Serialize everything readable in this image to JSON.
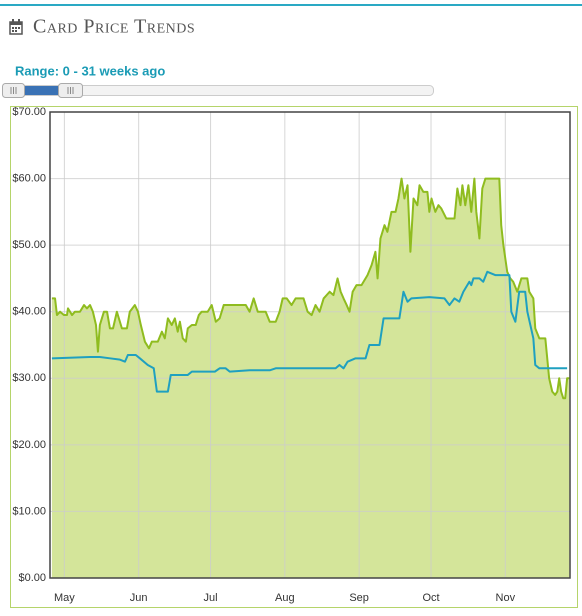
{
  "header": {
    "title": "Card Price Trends",
    "range_label": "Range: 0 - 31 weeks ago"
  },
  "chart_data": {
    "type": "line",
    "xlim": [
      0,
      217
    ],
    "xticks": [
      {
        "value": 6,
        "label": "May"
      },
      {
        "value": 37,
        "label": "Jun"
      },
      {
        "value": 67,
        "label": "Jul"
      },
      {
        "value": 98,
        "label": "Aug"
      },
      {
        "value": 129,
        "label": "Sep"
      },
      {
        "value": 159,
        "label": "Oct"
      },
      {
        "value": 190,
        "label": "Nov"
      }
    ],
    "ylim": [
      0,
      70
    ],
    "yticks": [
      {
        "value": 0,
        "label": "$0.00"
      },
      {
        "value": 10,
        "label": "$10.00"
      },
      {
        "value": 20,
        "label": "$20.00"
      },
      {
        "value": 30,
        "label": "$30.00"
      },
      {
        "value": 40,
        "label": "$40.00"
      },
      {
        "value": 50,
        "label": "$50.00"
      },
      {
        "value": 60,
        "label": "$60.00"
      },
      {
        "value": 70,
        "label": "$70.00"
      }
    ],
    "grid": true,
    "series": [
      {
        "color": "#8fbc1f",
        "fill": "#d4e59a",
        "x": [
          0.8,
          2.1,
          2.9,
          4.2,
          5.8,
          7.1,
          7.5,
          9.2,
          10.4,
          12.5,
          14.2,
          15.4,
          16.7,
          17.9,
          19.2,
          20,
          20.8,
          22.5,
          23.8,
          25,
          26.3,
          27.9,
          30,
          32.1,
          33.3,
          35.4,
          36.7,
          37.9,
          39.6,
          41.3,
          42.5,
          45,
          46.7,
          47.9,
          49.2,
          50.8,
          52.1,
          53.3,
          54.2,
          55.4,
          56.7,
          57.5,
          59.2,
          60.8,
          62.1,
          63.3,
          65.8,
          67.5,
          69.2,
          70.8,
          72.5,
          74.6,
          78.3,
          81.7,
          83.3,
          85,
          86.7,
          88.3,
          90,
          91.7,
          94.2,
          95.8,
          97.1,
          98.8,
          100.8,
          102.5,
          105.8,
          107.5,
          109.2,
          110.8,
          112.5,
          114.2,
          116.7,
          118.3,
          120,
          121.3,
          122.5,
          123.8,
          125,
          126.3,
          127.9,
          130,
          132.5,
          134.2,
          135.8,
          136.7,
          137.9,
          139.6,
          140.8,
          142.5,
          144.2,
          145.4,
          146.7,
          147.9,
          149.2,
          150.4,
          151.7,
          153.3,
          154.2,
          155.8,
          157.5,
          158.3,
          159.2,
          160.8,
          162.1,
          163.3,
          165.4,
          168.8,
          170,
          171.3,
          172.1,
          173.3,
          174.6,
          175.8,
          177.1,
          177.9,
          179.2,
          180.4,
          181.7,
          187.5,
          188.3,
          189.2,
          190.8,
          192.1,
          193.3,
          195,
          196.7,
          199.2,
          200,
          201.7,
          202.5,
          204.2,
          206.7,
          207.5,
          208.3,
          209.6,
          210.8,
          211.7,
          212.5,
          213.3,
          214.2,
          215,
          215.8,
          216.7
        ],
        "values": [
          42,
          42,
          39.5,
          40,
          39.5,
          39.5,
          40.5,
          39.5,
          40,
          40,
          41,
          40.5,
          41,
          40,
          38,
          34,
          38,
          40,
          40,
          37.5,
          37.5,
          40,
          37.5,
          37.5,
          40,
          41,
          40,
          38,
          35.5,
          34.5,
          35.5,
          35.5,
          37,
          36,
          39,
          38,
          39,
          37,
          38.5,
          36,
          35.5,
          37.5,
          38,
          38,
          39.5,
          40,
          40,
          41,
          38.5,
          39,
          41,
          41,
          41,
          41,
          40,
          42,
          40,
          40,
          40,
          38.5,
          38.5,
          40,
          42,
          42,
          41,
          42,
          42,
          40,
          39.5,
          41,
          40,
          42,
          43,
          42.5,
          45,
          43,
          42,
          41,
          40,
          43,
          44,
          44,
          45.5,
          47,
          49,
          45,
          51,
          53,
          52,
          55,
          55,
          57,
          60,
          57,
          59,
          49,
          57,
          56,
          59,
          58,
          58,
          55,
          57,
          55,
          56,
          55.5,
          54,
          54,
          58.5,
          56,
          59,
          56,
          59,
          55,
          60,
          55,
          51,
          58.5,
          60,
          60,
          53,
          50,
          46,
          45,
          44.5,
          43,
          45,
          45,
          43,
          42,
          37.5,
          36,
          36,
          33,
          30,
          28,
          27.5,
          28,
          30,
          28,
          27,
          27,
          30,
          30
        ]
      },
      {
        "color": "#1fa0c0",
        "x": [
          0.8,
          16.7,
          20.8,
          25,
          29.2,
          31.3,
          32.5,
          35.8,
          37.5,
          40.8,
          43.3,
          44.6,
          49.2,
          50.4,
          52.5,
          57.5,
          59.2,
          68.8,
          70.8,
          73.3,
          75,
          83.3,
          91.7,
          94.2,
          104.2,
          116.7,
          119.2,
          120.8,
          122.5,
          124.2,
          127.5,
          131.7,
          133.3,
          137.5,
          139.2,
          145.8,
          147.5,
          149.2,
          150.8,
          158.3,
          164.6,
          166.7,
          168.8,
          170.8,
          172.5,
          175,
          175.8,
          176.7,
          179.2,
          180.8,
          182.5,
          185.8,
          189.2,
          191.7,
          192.5,
          194.2,
          195.8,
          198.3,
          199.2,
          201.7,
          202.5,
          204.2,
          215.8
        ],
        "values": [
          33,
          33.2,
          33.2,
          33,
          32.8,
          32.5,
          33.5,
          33.5,
          33,
          32,
          31.5,
          28,
          28,
          30.5,
          30.5,
          30.5,
          31,
          31,
          31.5,
          31.5,
          31,
          31.2,
          31.2,
          31.5,
          31.5,
          31.5,
          31.5,
          32,
          31.5,
          32.5,
          33,
          33,
          35,
          35,
          39,
          39,
          43,
          41.5,
          42,
          42.2,
          42,
          41,
          42,
          41.5,
          43,
          44.5,
          44,
          45,
          45,
          44.5,
          46,
          45.5,
          45.5,
          45.5,
          40,
          38.5,
          43,
          43,
          40,
          36,
          32,
          31.5,
          31.5
        ]
      }
    ]
  }
}
